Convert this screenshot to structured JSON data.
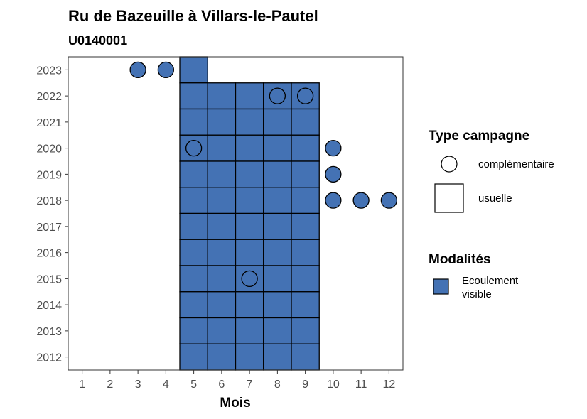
{
  "chart_data": {
    "type": "tile",
    "title": "Ru de Bazeuille à Villars-le-Pautel",
    "subtitle": "U0140001",
    "xlabel": "Mois",
    "ylabel": "",
    "x_ticks": [
      1,
      2,
      3,
      4,
      5,
      6,
      7,
      8,
      9,
      10,
      11,
      12
    ],
    "y_ticks": [
      2012,
      2013,
      2014,
      2015,
      2016,
      2017,
      2018,
      2019,
      2020,
      2021,
      2022,
      2023
    ],
    "xlim": [
      0.5,
      12.5
    ],
    "ylim": [
      2011.5,
      2023.5
    ],
    "grid": false,
    "fill_color": "#4472B4",
    "legend_position": "right",
    "legend_shape": {
      "title": "Type campagne",
      "entries": [
        {
          "label": "complémentaire",
          "shape": "circle"
        },
        {
          "label": "usuelle",
          "shape": "square"
        }
      ]
    },
    "legend_fill": {
      "title": "Modalités",
      "entries": [
        {
          "label": "Ecoulement\nvisible",
          "color": "#4472B4"
        }
      ]
    },
    "usuelle": [
      {
        "x": 5,
        "y": 2023
      },
      {
        "x": 5,
        "y": 2022
      },
      {
        "x": 6,
        "y": 2022
      },
      {
        "x": 7,
        "y": 2022
      },
      {
        "x": 8,
        "y": 2022
      },
      {
        "x": 9,
        "y": 2022
      },
      {
        "x": 5,
        "y": 2021
      },
      {
        "x": 6,
        "y": 2021
      },
      {
        "x": 7,
        "y": 2021
      },
      {
        "x": 8,
        "y": 2021
      },
      {
        "x": 9,
        "y": 2021
      },
      {
        "x": 5,
        "y": 2020
      },
      {
        "x": 6,
        "y": 2020
      },
      {
        "x": 7,
        "y": 2020
      },
      {
        "x": 8,
        "y": 2020
      },
      {
        "x": 9,
        "y": 2020
      },
      {
        "x": 5,
        "y": 2019
      },
      {
        "x": 6,
        "y": 2019
      },
      {
        "x": 7,
        "y": 2019
      },
      {
        "x": 8,
        "y": 2019
      },
      {
        "x": 9,
        "y": 2019
      },
      {
        "x": 5,
        "y": 2018
      },
      {
        "x": 6,
        "y": 2018
      },
      {
        "x": 7,
        "y": 2018
      },
      {
        "x": 8,
        "y": 2018
      },
      {
        "x": 9,
        "y": 2018
      },
      {
        "x": 5,
        "y": 2017
      },
      {
        "x": 6,
        "y": 2017
      },
      {
        "x": 7,
        "y": 2017
      },
      {
        "x": 8,
        "y": 2017
      },
      {
        "x": 9,
        "y": 2017
      },
      {
        "x": 5,
        "y": 2016
      },
      {
        "x": 6,
        "y": 2016
      },
      {
        "x": 7,
        "y": 2016
      },
      {
        "x": 8,
        "y": 2016
      },
      {
        "x": 9,
        "y": 2016
      },
      {
        "x": 5,
        "y": 2015
      },
      {
        "x": 6,
        "y": 2015
      },
      {
        "x": 7,
        "y": 2015
      },
      {
        "x": 8,
        "y": 2015
      },
      {
        "x": 9,
        "y": 2015
      },
      {
        "x": 5,
        "y": 2014
      },
      {
        "x": 6,
        "y": 2014
      },
      {
        "x": 7,
        "y": 2014
      },
      {
        "x": 8,
        "y": 2014
      },
      {
        "x": 9,
        "y": 2014
      },
      {
        "x": 5,
        "y": 2013
      },
      {
        "x": 6,
        "y": 2013
      },
      {
        "x": 7,
        "y": 2013
      },
      {
        "x": 8,
        "y": 2013
      },
      {
        "x": 9,
        "y": 2013
      },
      {
        "x": 5,
        "y": 2012
      },
      {
        "x": 6,
        "y": 2012
      },
      {
        "x": 7,
        "y": 2012
      },
      {
        "x": 8,
        "y": 2012
      },
      {
        "x": 9,
        "y": 2012
      }
    ],
    "complementaire": [
      {
        "x": 3,
        "y": 2023
      },
      {
        "x": 4,
        "y": 2023
      },
      {
        "x": 8,
        "y": 2022
      },
      {
        "x": 9,
        "y": 2022
      },
      {
        "x": 5,
        "y": 2020
      },
      {
        "x": 10,
        "y": 2020
      },
      {
        "x": 10,
        "y": 2019
      },
      {
        "x": 10,
        "y": 2018
      },
      {
        "x": 11,
        "y": 2018
      },
      {
        "x": 12,
        "y": 2018
      },
      {
        "x": 7,
        "y": 2015
      }
    ]
  }
}
